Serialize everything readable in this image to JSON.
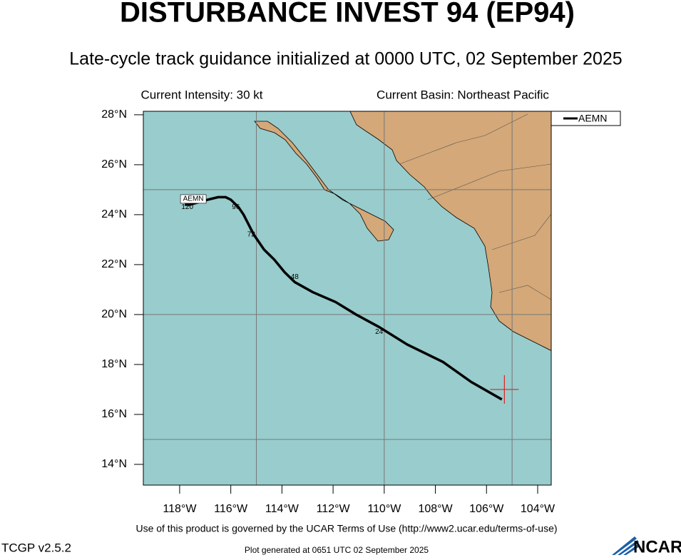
{
  "header": {
    "title": "DISTURBANCE INVEST 94 (EP94)",
    "subtitle": "Late-cycle track guidance initialized at 0000 UTC, 02 September 2025",
    "intensity": "Current Intensity: 30 kt",
    "basin": "Current Basin: Northeast Pacific"
  },
  "chart_data": {
    "type": "track",
    "xlim": [
      -119.42,
      -103.47
    ],
    "ylim": [
      13.17,
      28.14
    ],
    "xticks": [
      {
        "value": -118,
        "label": "118°W"
      },
      {
        "value": -116,
        "label": "116°W"
      },
      {
        "value": -114,
        "label": "114°W"
      },
      {
        "value": -112,
        "label": "112°W"
      },
      {
        "value": -110,
        "label": "110°W"
      },
      {
        "value": -108,
        "label": "108°W"
      },
      {
        "value": -106,
        "label": "106°W"
      },
      {
        "value": -104,
        "label": "104°W"
      }
    ],
    "yticks": [
      {
        "value": 14,
        "label": "14°N"
      },
      {
        "value": 16,
        "label": "16°N"
      },
      {
        "value": 18,
        "label": "18°N"
      },
      {
        "value": 20,
        "label": "20°N"
      },
      {
        "value": 22,
        "label": "22°N"
      },
      {
        "value": 24,
        "label": "24°N"
      },
      {
        "value": 26,
        "label": "26°N"
      },
      {
        "value": 28,
        "label": "28°N"
      }
    ],
    "grid_lons": [
      -115,
      -110,
      -105
    ],
    "grid_lats": [
      15,
      20,
      25
    ],
    "current_position": {
      "lon": -105.3,
      "lat": 17.0,
      "color": "#dd2222"
    },
    "series": [
      {
        "name": "AEMN",
        "color": "#000000",
        "lon": [
          -105.4,
          -106.6,
          -107.7,
          -109.1,
          -110.2,
          -111.1,
          -111.9,
          -112.8,
          -113.5,
          -113.9,
          -114.3,
          -114.7,
          -115.1,
          -115.3,
          -115.5,
          -115.7,
          -116.0,
          -116.2,
          -116.5,
          -116.9,
          -117.6,
          -117.8
        ],
        "lat": [
          16.6,
          17.3,
          18.1,
          18.8,
          19.5,
          20.0,
          20.5,
          20.9,
          21.3,
          21.7,
          22.2,
          22.6,
          23.2,
          23.6,
          24.0,
          24.3,
          24.6,
          24.7,
          24.7,
          24.6,
          24.4,
          24.4
        ]
      }
    ],
    "hour_labels": [
      {
        "text": "24",
        "lon": -110.2,
        "lat": 19.3
      },
      {
        "text": "48",
        "lon": -113.5,
        "lat": 21.5
      },
      {
        "text": "72",
        "lon": -115.2,
        "lat": 23.2
      },
      {
        "text": "96",
        "lon": -115.8,
        "lat": 24.3
      },
      {
        "text": "120",
        "lon": -117.7,
        "lat": 24.3
      }
    ]
  },
  "footer": {
    "terms": "Use of this product is governed by the UCAR Terms of Use (http://www2.ucar.edu/terms-of-use)",
    "version": "TCGP v2.5.2",
    "generated": "Plot generated at 0651 UTC   02 September 2025",
    "logo": "NCAR"
  }
}
